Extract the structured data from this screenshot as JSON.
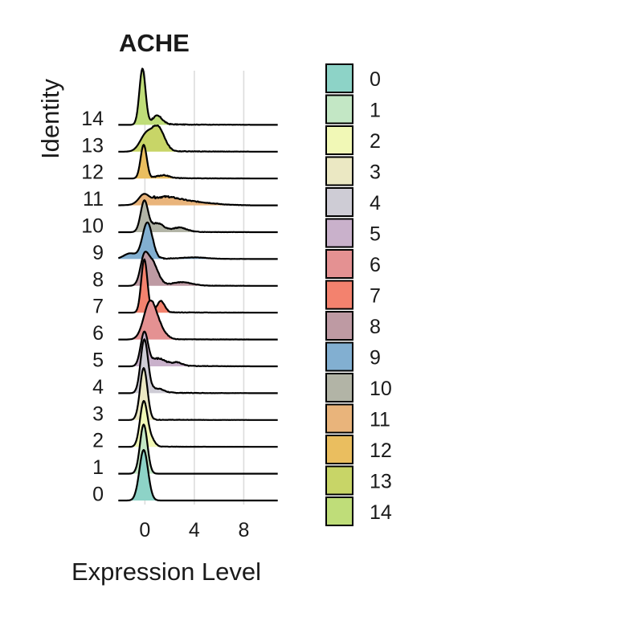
{
  "chart_data": {
    "type": "ridgeline",
    "title": "ACHE",
    "xlabel": "Expression Level",
    "ylabel": "Identity",
    "x_ticks": [
      0,
      4,
      8
    ],
    "xlim": [
      -2.3,
      10.9
    ],
    "grid": "vertical",
    "legend_position": "right",
    "series": [
      {
        "name": "0",
        "color": "#8DD3C7",
        "peaks": [
          [
            -0.1,
            0.35,
            1.8
          ]
        ],
        "noise": 0.0
      },
      {
        "name": "1",
        "color": "#C3E7C5",
        "peaks": [
          [
            -0.1,
            0.3,
            1.75
          ]
        ],
        "noise": 0.0
      },
      {
        "name": "2",
        "color": "#F1F8B6",
        "peaks": [
          [
            -0.1,
            0.3,
            1.6
          ],
          [
            0.5,
            0.3,
            0.25
          ]
        ],
        "noise": 0.02
      },
      {
        "name": "3",
        "color": "#EBE8C3",
        "peaks": [
          [
            -0.1,
            0.3,
            1.85
          ]
        ],
        "noise": 0.02
      },
      {
        "name": "4",
        "color": "#CECCD5",
        "peaks": [
          [
            -0.05,
            0.3,
            1.9
          ],
          [
            1.0,
            0.5,
            0.15
          ]
        ],
        "noise": 0.04
      },
      {
        "name": "5",
        "color": "#C9B1CB",
        "peaks": [
          [
            -0.05,
            0.3,
            1.2
          ],
          [
            1.1,
            0.6,
            0.25
          ],
          [
            2.6,
            0.4,
            0.12
          ]
        ],
        "noise": 0.06
      },
      {
        "name": "6",
        "color": "#E49192",
        "peaks": [
          [
            0.4,
            0.5,
            1.3
          ],
          [
            1.2,
            0.5,
            0.3
          ]
        ],
        "noise": 0.03
      },
      {
        "name": "7",
        "color": "#F3826E",
        "peaks": [
          [
            -0.05,
            0.25,
            1.9
          ],
          [
            1.3,
            0.3,
            0.4
          ]
        ],
        "noise": 0.04
      },
      {
        "name": "8",
        "color": "#BE9AA3",
        "peaks": [
          [
            -0.1,
            0.3,
            0.7
          ],
          [
            0.5,
            0.5,
            0.9
          ],
          [
            3.0,
            0.8,
            0.12
          ]
        ],
        "noise": 0.04
      },
      {
        "name": "9",
        "color": "#82AFD1",
        "peaks": [
          [
            0.2,
            0.4,
            1.3
          ],
          [
            -1.2,
            0.5,
            0.2
          ],
          [
            4.0,
            1.0,
            0.05
          ]
        ],
        "noise": 0.04
      },
      {
        "name": "10",
        "color": "#B2B4A6",
        "peaks": [
          [
            -0.05,
            0.3,
            1.1
          ],
          [
            1.0,
            0.5,
            0.3
          ],
          [
            2.8,
            0.6,
            0.15
          ]
        ],
        "noise": 0.05
      },
      {
        "name": "11",
        "color": "#E9B47B",
        "peaks": [
          [
            -0.1,
            0.4,
            0.3
          ],
          [
            1.5,
            1.2,
            0.25
          ],
          [
            4.0,
            1.5,
            0.1
          ]
        ],
        "noise": 0.08
      },
      {
        "name": "12",
        "color": "#EABE5F",
        "peaks": [
          [
            -0.1,
            0.25,
            1.2
          ],
          [
            1.5,
            0.5,
            0.1
          ]
        ],
        "noise": 0.04
      },
      {
        "name": "13",
        "color": "#C8D567",
        "peaks": [
          [
            0.1,
            0.5,
            0.6
          ],
          [
            1.1,
            0.5,
            0.8
          ]
        ],
        "noise": 0.05
      },
      {
        "name": "14",
        "color": "#BFDD79",
        "peaks": [
          [
            -0.2,
            0.25,
            2.0
          ],
          [
            1.0,
            0.4,
            0.3
          ]
        ],
        "noise": 0.05
      }
    ]
  }
}
